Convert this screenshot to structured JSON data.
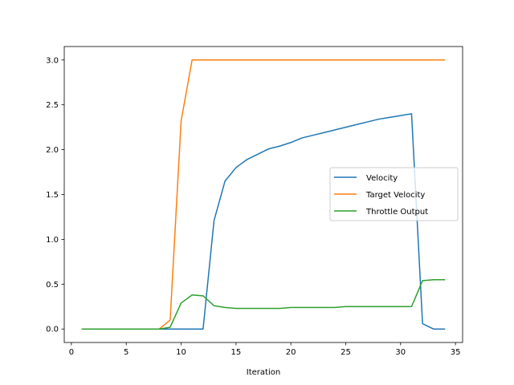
{
  "chart_data": {
    "type": "line",
    "title": "",
    "xlabel": "Iteration",
    "ylabel": "",
    "xlim": [
      -0.65,
      35.65
    ],
    "ylim": [
      -0.15,
      3.15
    ],
    "xticks": [
      0,
      5,
      10,
      15,
      20,
      25,
      30,
      35
    ],
    "yticks": [
      0.0,
      0.5,
      1.0,
      1.5,
      2.0,
      2.5,
      3.0
    ],
    "xtick_labels": [
      "0",
      "5",
      "10",
      "15",
      "20",
      "25",
      "30",
      "35"
    ],
    "ytick_labels": [
      "0.0",
      "0.5",
      "1.0",
      "1.5",
      "2.0",
      "2.5",
      "3.0"
    ],
    "grid": false,
    "legend_position": "center-right",
    "x": [
      1,
      2,
      3,
      4,
      5,
      6,
      7,
      8,
      9,
      10,
      11,
      12,
      13,
      14,
      15,
      16,
      17,
      18,
      19,
      20,
      21,
      22,
      23,
      24,
      25,
      26,
      27,
      28,
      29,
      30,
      31,
      32,
      33,
      34
    ],
    "series": [
      {
        "name": "Velocity",
        "color": "#1f77b4",
        "values": [
          0,
          0,
          0,
          0,
          0,
          0,
          0,
          0,
          0,
          0,
          0,
          0,
          1.21,
          1.65,
          1.8,
          1.89,
          1.95,
          2.01,
          2.04,
          2.08,
          2.13,
          2.16,
          2.19,
          2.22,
          2.25,
          2.28,
          2.31,
          2.34,
          2.36,
          2.38,
          2.4,
          0.06,
          0.0,
          0.0
        ]
      },
      {
        "name": "Target Velocity",
        "color": "#ff7f0e",
        "values": [
          0,
          0,
          0,
          0,
          0,
          0,
          0,
          0,
          0.1,
          2.32,
          3.0,
          3.0,
          3.0,
          3.0,
          3.0,
          3.0,
          3.0,
          3.0,
          3.0,
          3.0,
          3.0,
          3.0,
          3.0,
          3.0,
          3.0,
          3.0,
          3.0,
          3.0,
          3.0,
          3.0,
          3.0,
          3.0,
          3.0,
          3.0
        ]
      },
      {
        "name": "Throttle Output",
        "color": "#2ca02c",
        "values": [
          0,
          0,
          0,
          0,
          0,
          0,
          0,
          0,
          0.02,
          0.29,
          0.38,
          0.37,
          0.26,
          0.24,
          0.23,
          0.23,
          0.23,
          0.23,
          0.23,
          0.24,
          0.24,
          0.24,
          0.24,
          0.24,
          0.25,
          0.25,
          0.25,
          0.25,
          0.25,
          0.25,
          0.25,
          0.54,
          0.55,
          0.55
        ]
      }
    ]
  }
}
